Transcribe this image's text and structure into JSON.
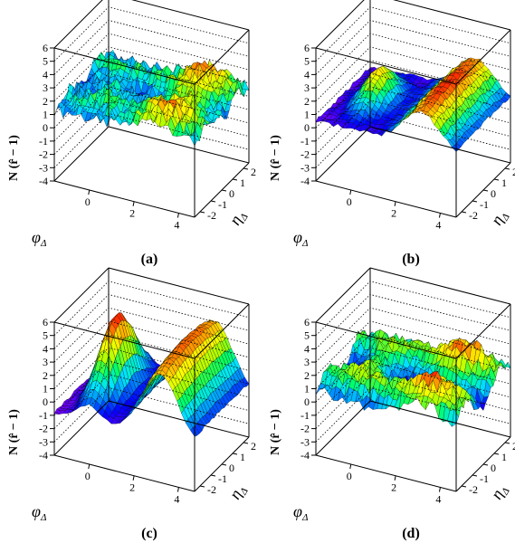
{
  "chart_data": [
    {
      "type": "surface",
      "panel_label": "(a)",
      "zlabel": "N (r̂ − 1)",
      "xlabel": "φ",
      "xlabel_sub": "Δ",
      "ylabel": "η",
      "ylabel_sub": "Δ",
      "x_ticks": [
        "4",
        "2",
        "0"
      ],
      "y_ticks": [
        "-2",
        "-1",
        "0",
        "1",
        "2"
      ],
      "z_ticks": [
        "-4",
        "-3",
        "-2",
        "-1",
        "0",
        "1",
        "2",
        "3",
        "4",
        "5",
        "6"
      ],
      "x_range": [
        -1.571,
        4.712
      ],
      "y_range": [
        -2.5,
        2.5
      ],
      "z_range": [
        -4,
        6
      ],
      "model": {
        "base": 1.5,
        "near_amp": 0.6,
        "away_amp": 1.2,
        "eta_width": 0.8,
        "dip_amp": 0.3,
        "noise": 0.55
      }
    },
    {
      "type": "surface",
      "panel_label": "(b)",
      "zlabel": "N (r̂ − 1)",
      "xlabel": "φ",
      "xlabel_sub": "Δ",
      "ylabel": "η",
      "ylabel_sub": "Δ",
      "x_ticks": [
        "4",
        "2",
        "0"
      ],
      "y_ticks": [
        "-2",
        "-1",
        "0",
        "1",
        "2"
      ],
      "z_ticks": [
        "-4",
        "-3",
        "-2",
        "-1",
        "0",
        "1",
        "2",
        "3",
        "4",
        "5",
        "6"
      ],
      "x_range": [
        -1.571,
        4.712
      ],
      "y_range": [
        -2.5,
        2.5
      ],
      "z_range": [
        -4,
        6
      ],
      "model": {
        "base": 0.5,
        "near_amp": 2.5,
        "away_amp": 3.0,
        "eta_width": 1.1,
        "dip_amp": 0.0,
        "noise": 0.15
      }
    },
    {
      "type": "surface",
      "panel_label": "(c)",
      "zlabel": "N (r̂ − 1)",
      "xlabel": "φ",
      "xlabel_sub": "Δ",
      "ylabel": "η",
      "ylabel_sub": "Δ",
      "x_ticks": [
        "4",
        "2",
        "0"
      ],
      "y_ticks": [
        "-2",
        "-1",
        "0",
        "1",
        "2"
      ],
      "z_ticks": [
        "-4",
        "-3",
        "-2",
        "-1",
        "0",
        "1",
        "2",
        "3",
        "4",
        "5",
        "6"
      ],
      "x_range": [
        -1.571,
        4.712
      ],
      "y_range": [
        -2.5,
        2.5
      ],
      "z_range": [
        -4,
        6
      ],
      "model": {
        "base": -0.8,
        "near_amp": 6.0,
        "away_amp": 5.5,
        "eta_width": 1.4,
        "dip_amp": 0.0,
        "noise": 0.1
      }
    },
    {
      "type": "surface",
      "panel_label": "(d)",
      "zlabel": "N (r̂ − 1)",
      "xlabel": "φ",
      "xlabel_sub": "Δ",
      "ylabel": "η",
      "ylabel_sub": "Δ",
      "x_ticks": [
        "4",
        "2",
        "0"
      ],
      "y_ticks": [
        "-2",
        "-1",
        "0",
        "1",
        "2"
      ],
      "z_ticks": [
        "-4",
        "-3",
        "-2",
        "-1",
        "0",
        "1",
        "2",
        "3",
        "4",
        "5",
        "6"
      ],
      "x_range": [
        -1.571,
        4.712
      ],
      "y_range": [
        -2.5,
        2.5
      ],
      "z_range": [
        -4,
        6
      ],
      "model": {
        "base": 1.0,
        "near_amp": 1.6,
        "away_amp": 1.4,
        "eta_width": 0.9,
        "dip_amp": 0.8,
        "noise": 0.5
      }
    }
  ],
  "colors": {
    "palette": [
      "#7f00ff",
      "#0000ff",
      "#0080ff",
      "#00e5ff",
      "#00ff66",
      "#aaff00",
      "#ffff00",
      "#ff8800",
      "#ff0000"
    ],
    "mesh": "#000000",
    "box": "#000000"
  }
}
